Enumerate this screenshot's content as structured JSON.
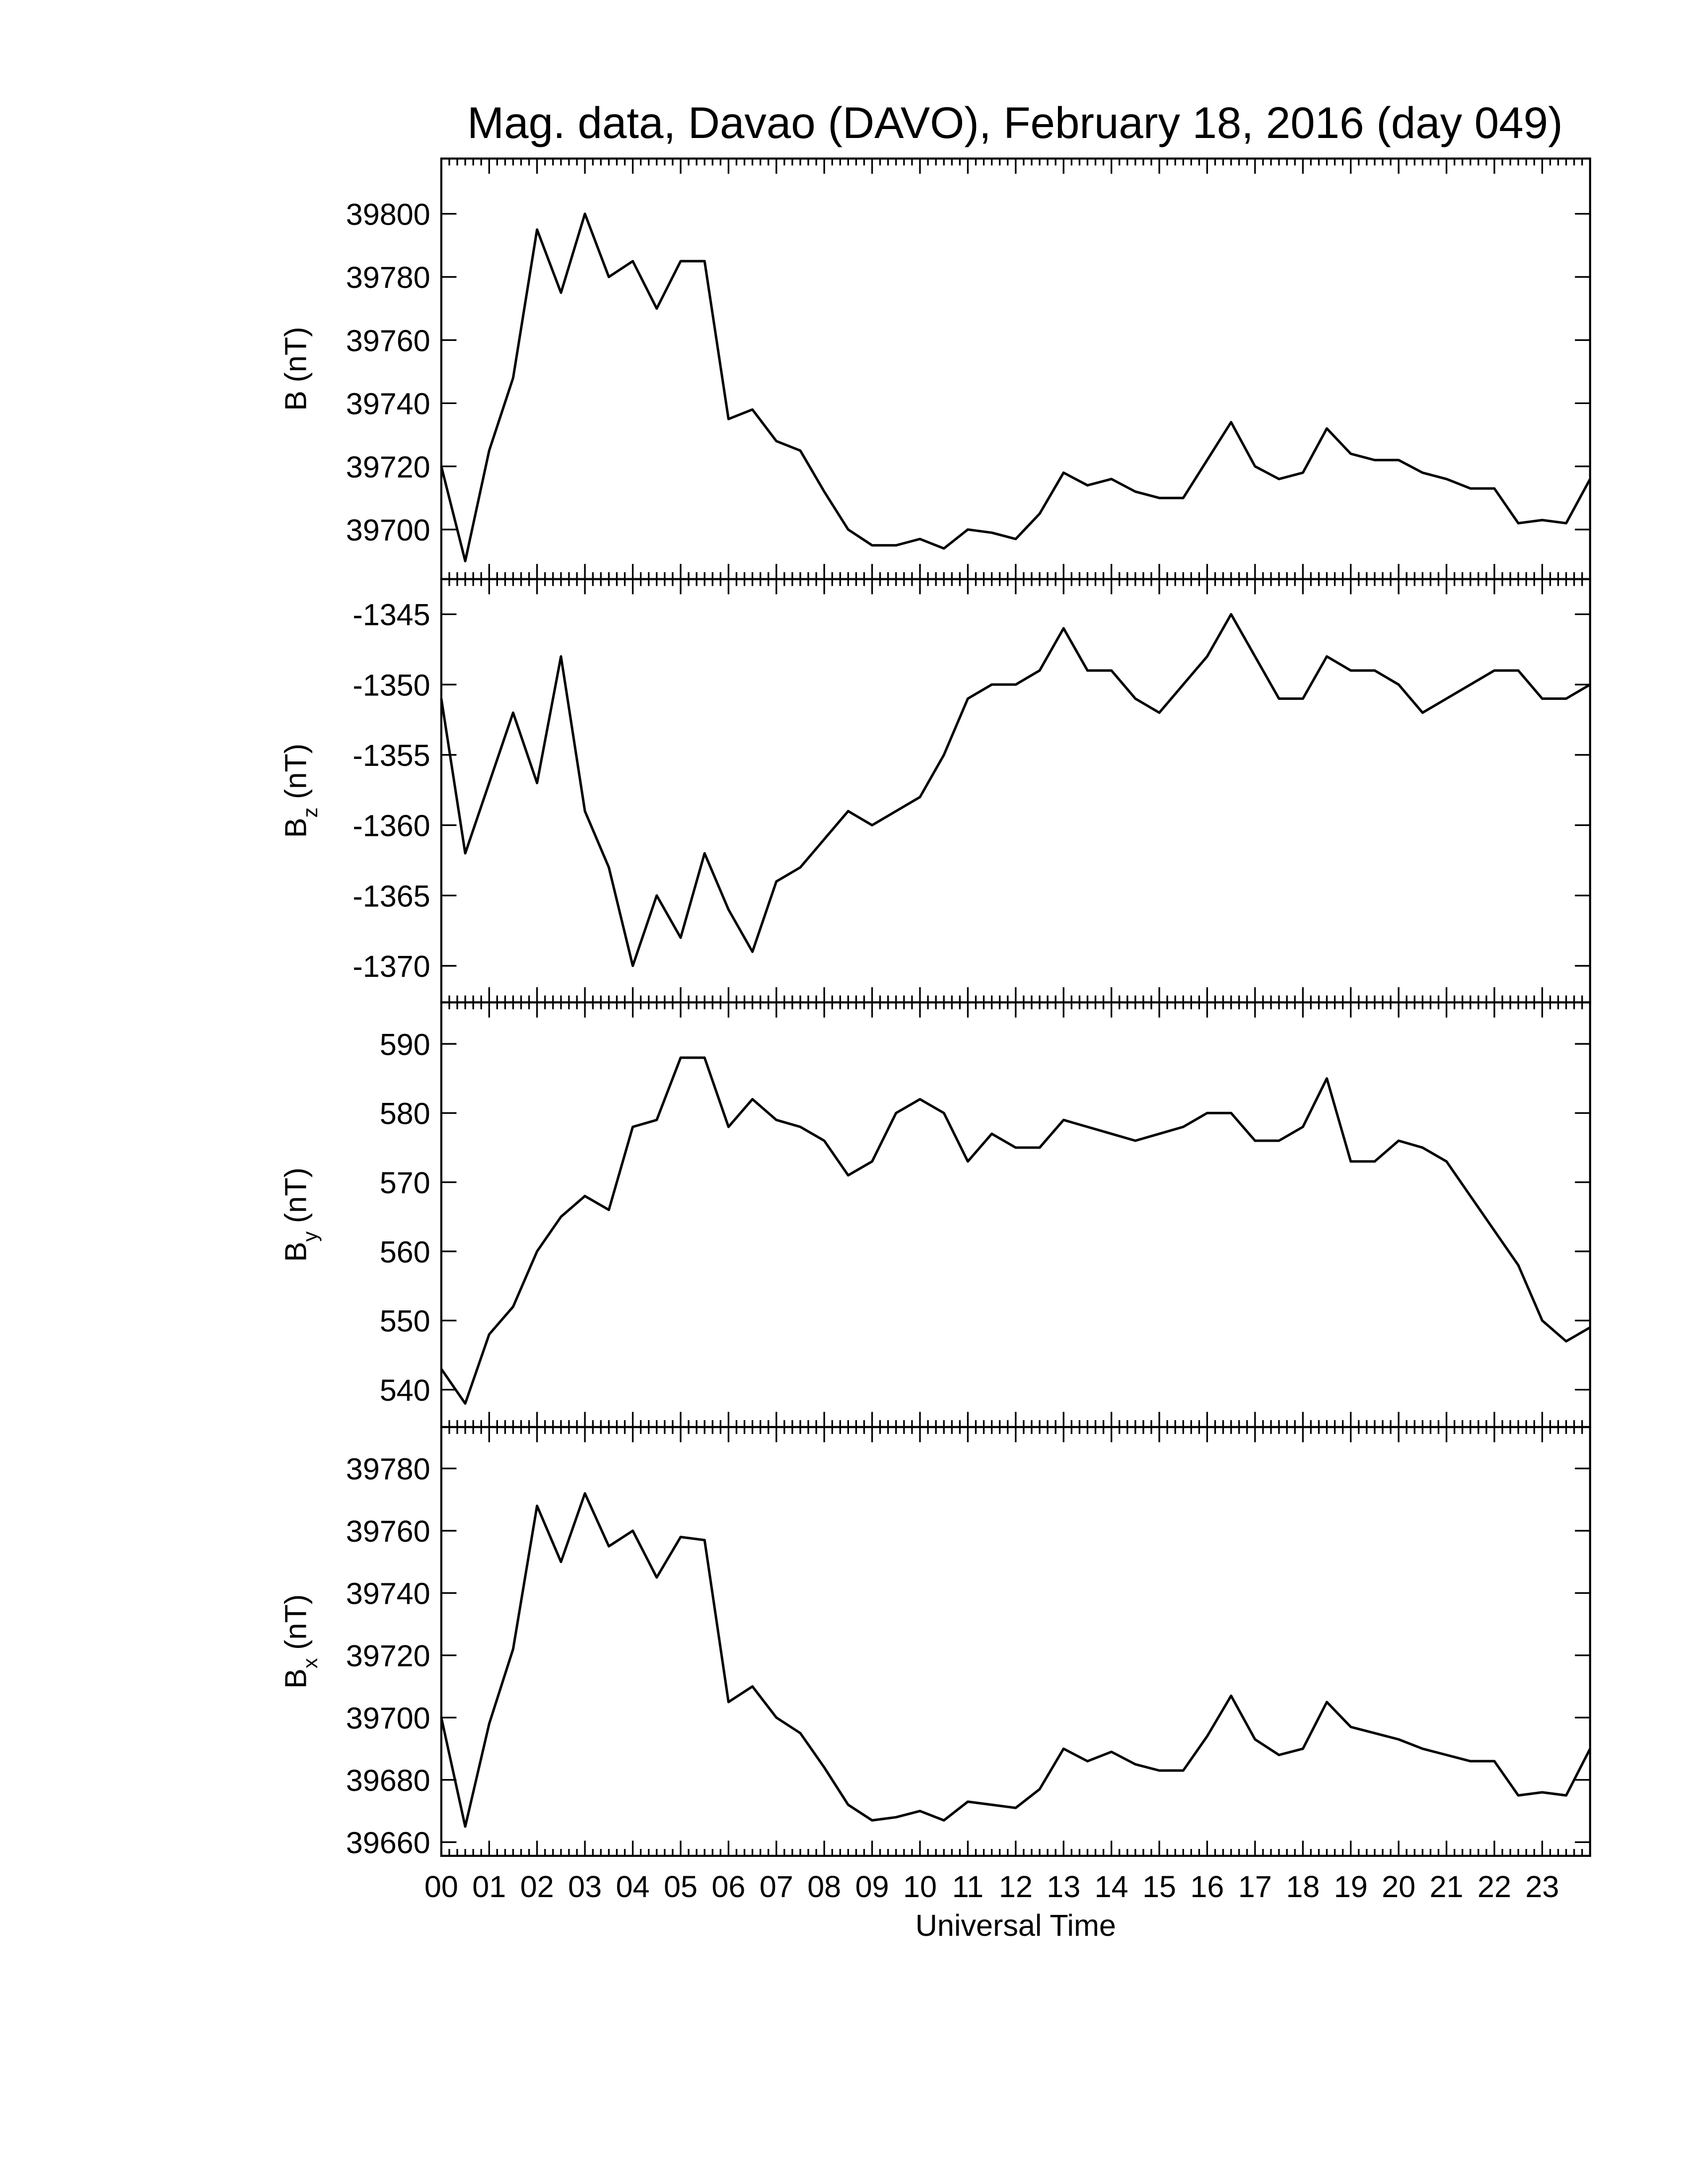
{
  "chart_data": [
    {
      "type": "line",
      "title": "Mag. data, Davao (DAVO), February 18, 2016 (day 049)",
      "ylabel": "B",
      "ylabel_unit": "(nT)",
      "color": "#000000",
      "x": [
        0,
        0.5,
        1,
        1.5,
        2,
        2.5,
        3,
        3.5,
        4,
        4.5,
        5,
        5.5,
        6,
        6.5,
        7,
        7.5,
        8,
        8.5,
        9,
        9.5,
        10,
        10.5,
        11,
        11.5,
        12,
        12.5,
        13,
        13.5,
        14,
        14.5,
        15,
        15.5,
        16,
        16.5,
        17,
        17.5,
        18,
        18.5,
        19,
        19.5,
        20,
        20.5,
        21,
        21.5,
        22,
        22.5,
        23,
        23.5,
        24
      ],
      "values": [
        39720,
        39690,
        39725,
        39748,
        39795,
        39775,
        39800,
        39780,
        39785,
        39770,
        39785,
        39785,
        39735,
        39738,
        39728,
        39725,
        39712,
        39700,
        39695,
        39695,
        39697,
        39694,
        39700,
        39699,
        39697,
        39705,
        39718,
        39714,
        39716,
        39712,
        39710,
        39710,
        39722,
        39734,
        39720,
        39716,
        39718,
        39732,
        39724,
        39722,
        39722,
        39718,
        39716,
        39713,
        39713,
        39702,
        39703,
        39702,
        39716
      ],
      "xlim": [
        0,
        24
      ],
      "ylim": [
        39684.3,
        39817.5
      ],
      "yticks": [
        39700,
        39720,
        39740,
        39760,
        39780,
        39800
      ]
    },
    {
      "type": "line",
      "ylabel": "B",
      "ylabel_sub": "z",
      "ylabel_unit": "(nT)",
      "color": "#000000",
      "x": [
        0,
        0.5,
        1,
        1.5,
        2,
        2.5,
        3,
        3.5,
        4,
        4.5,
        5,
        5.5,
        6,
        6.5,
        7,
        7.5,
        8,
        8.5,
        9,
        9.5,
        10,
        10.5,
        11,
        11.5,
        12,
        12.5,
        13,
        13.5,
        14,
        14.5,
        15,
        15.5,
        16,
        16.5,
        17,
        17.5,
        18,
        18.5,
        19,
        19.5,
        20,
        20.5,
        21,
        21.5,
        22,
        22.5,
        23,
        23.5,
        24
      ],
      "values": [
        -1351,
        -1362,
        -1357,
        -1352,
        -1357,
        -1348,
        -1359,
        -1363,
        -1370,
        -1365,
        -1368,
        -1362,
        -1366,
        -1369,
        -1364,
        -1363,
        -1361,
        -1359,
        -1360,
        -1359,
        -1358,
        -1355,
        -1351,
        -1350,
        -1350,
        -1349,
        -1346,
        -1349,
        -1349,
        -1351,
        -1352,
        -1350,
        -1348,
        -1345,
        -1348,
        -1351,
        -1351,
        -1348,
        -1349,
        -1349,
        -1350,
        -1352,
        -1351,
        -1350,
        -1349,
        -1349,
        -1351,
        -1351,
        -1350
      ],
      "xlim": [
        0,
        24
      ],
      "ylim": [
        -1372.6,
        -1342.5
      ],
      "yticks": [
        -1370,
        -1365,
        -1360,
        -1355,
        -1350,
        -1345
      ]
    },
    {
      "type": "line",
      "ylabel": "B",
      "ylabel_sub": "y",
      "ylabel_unit": "(nT)",
      "color": "#000000",
      "x": [
        0,
        0.5,
        1,
        1.5,
        2,
        2.5,
        3,
        3.5,
        4,
        4.5,
        5,
        5.5,
        6,
        6.5,
        7,
        7.5,
        8,
        8.5,
        9,
        9.5,
        10,
        10.5,
        11,
        11.5,
        12,
        12.5,
        13,
        13.5,
        14,
        14.5,
        15,
        15.5,
        16,
        16.5,
        17,
        17.5,
        18,
        18.5,
        19,
        19.5,
        20,
        20.5,
        21,
        21.5,
        22,
        22.5,
        23,
        23.5,
        24
      ],
      "values": [
        543,
        538,
        548,
        552,
        560,
        565,
        568,
        566,
        578,
        579,
        588,
        588,
        578,
        582,
        579,
        578,
        576,
        571,
        573,
        580,
        582,
        580,
        573,
        577,
        575,
        575,
        579,
        578,
        577,
        576,
        577,
        578,
        580,
        580,
        576,
        576,
        578,
        585,
        573,
        573,
        576,
        575,
        573,
        568,
        563,
        558,
        550,
        547,
        549
      ],
      "xlim": [
        0,
        24
      ],
      "ylim": [
        534.6,
        596
      ],
      "yticks": [
        540,
        550,
        560,
        570,
        580,
        590
      ]
    },
    {
      "type": "line",
      "ylabel": "B",
      "ylabel_sub": "x",
      "ylabel_unit": "(nT)",
      "xlabel": "Universal Time",
      "color": "#000000",
      "x": [
        0,
        0.5,
        1,
        1.5,
        2,
        2.5,
        3,
        3.5,
        4,
        4.5,
        5,
        5.5,
        6,
        6.5,
        7,
        7.5,
        8,
        8.5,
        9,
        9.5,
        10,
        10.5,
        11,
        11.5,
        12,
        12.5,
        13,
        13.5,
        14,
        14.5,
        15,
        15.5,
        16,
        16.5,
        17,
        17.5,
        18,
        18.5,
        19,
        19.5,
        20,
        20.5,
        21,
        21.5,
        22,
        22.5,
        23,
        23.5,
        24
      ],
      "values": [
        39700,
        39665,
        39698,
        39722,
        39768,
        39750,
        39772,
        39755,
        39760,
        39745,
        39758,
        39757,
        39705,
        39710,
        39700,
        39695,
        39684,
        39672,
        39667,
        39668,
        39670,
        39667,
        39673,
        39672,
        39671,
        39677,
        39690,
        39686,
        39689,
        39685,
        39683,
        39683,
        39694,
        39707,
        39693,
        39688,
        39690,
        39705,
        39697,
        39695,
        39693,
        39690,
        39688,
        39686,
        39686,
        39675,
        39676,
        39675,
        39690
      ],
      "xlim": [
        0,
        24
      ],
      "ylim": [
        39655.6,
        39793.3
      ],
      "yticks": [
        39660,
        39680,
        39700,
        39720,
        39740,
        39760,
        39780
      ],
      "xticks": [
        {
          "value": 0,
          "label": "00"
        },
        {
          "value": 1,
          "label": "01"
        },
        {
          "value": 2,
          "label": "02"
        },
        {
          "value": 3,
          "label": "03"
        },
        {
          "value": 4,
          "label": "04"
        },
        {
          "value": 5,
          "label": "05"
        },
        {
          "value": 6,
          "label": "06"
        },
        {
          "value": 7,
          "label": "07"
        },
        {
          "value": 8,
          "label": "08"
        },
        {
          "value": 9,
          "label": "09"
        },
        {
          "value": 10,
          "label": "10"
        },
        {
          "value": 11,
          "label": "11"
        },
        {
          "value": 12,
          "label": "12"
        },
        {
          "value": 13,
          "label": "13"
        },
        {
          "value": 14,
          "label": "14"
        },
        {
          "value": 15,
          "label": "15"
        },
        {
          "value": 16,
          "label": "16"
        },
        {
          "value": 17,
          "label": "17"
        },
        {
          "value": 18,
          "label": "18"
        },
        {
          "value": 19,
          "label": "19"
        },
        {
          "value": 20,
          "label": "20"
        },
        {
          "value": 21,
          "label": "21"
        },
        {
          "value": 22,
          "label": "22"
        },
        {
          "value": 23,
          "label": "23"
        }
      ]
    }
  ]
}
